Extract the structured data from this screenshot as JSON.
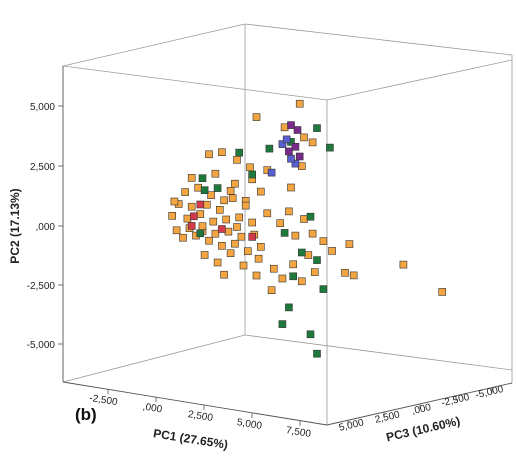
{
  "chart_data": {
    "type": "scatter",
    "title": "",
    "panel_label": "(b)",
    "xlabel": "PC1 (27.65%)",
    "ylabel": "PC2 (17.13%)",
    "zlabel": "PC3 (10.60%)",
    "y_ticks": [
      "5,000",
      "2,500",
      ",000",
      "-2,500",
      "-5,000"
    ],
    "x_ticks": [
      "-2,500",
      ",000",
      "2,500",
      "5,000",
      "7,500"
    ],
    "z_ticks": [
      "5,000",
      "2,500",
      ",000",
      "-2,500",
      "-5,000"
    ],
    "grid": false,
    "colors": {
      "orange": "#f2a541",
      "green": "#1e7a3c",
      "purple": "#7a2a8a",
      "blue": "#5a5fd0",
      "red": "#d43a4a",
      "edge": "#9a9a9a"
    },
    "series": [
      {
        "color": "orange",
        "points": [
          [
            0.6,
            3.0
          ],
          [
            1.2,
            3.1
          ],
          [
            1.9,
            2.8
          ],
          [
            2.8,
            4.6
          ],
          [
            4.1,
            4.2
          ],
          [
            4.8,
            5.2
          ],
          [
            5.0,
            3.8
          ],
          [
            5.4,
            3.6
          ],
          [
            3.3,
            2.4
          ],
          [
            4.9,
            2.6
          ],
          [
            2.6,
            2.0
          ],
          [
            0.9,
            2.2
          ],
          [
            1.6,
            1.5
          ],
          [
            2.3,
            1.1
          ],
          [
            1.8,
            1.8
          ],
          [
            -1.1,
            0.4
          ],
          [
            -0.8,
            0.9
          ],
          [
            -0.4,
            0.3
          ],
          [
            -0.2,
            0.8
          ],
          [
            0.2,
            0.5
          ],
          [
            0.5,
            0.9
          ],
          [
            0.8,
            0.2
          ],
          [
            1.1,
            0.7
          ],
          [
            1.4,
            0.3
          ],
          [
            1.7,
            1.2
          ],
          [
            2.0,
            0.4
          ],
          [
            2.3,
            0.9
          ],
          [
            2.6,
            0.2
          ],
          [
            -0.9,
            -0.2
          ],
          [
            -0.6,
            -0.5
          ],
          [
            -0.3,
            -0.1
          ],
          [
            0.0,
            -0.4
          ],
          [
            0.3,
            -0.2
          ],
          [
            0.6,
            -0.6
          ],
          [
            0.9,
            -0.3
          ],
          [
            1.2,
            -0.8
          ],
          [
            1.5,
            -0.2
          ],
          [
            1.8,
            -0.7
          ],
          [
            2.1,
            -0.4
          ],
          [
            2.4,
            -1.0
          ],
          [
            2.7,
            -0.3
          ],
          [
            3.0,
            -0.8
          ],
          [
            -0.5,
            1.4
          ],
          [
            0.1,
            1.6
          ],
          [
            0.7,
            1.3
          ],
          [
            1.3,
            1.1
          ],
          [
            -1.0,
            1.0
          ],
          [
            0.4,
            -1.2
          ],
          [
            1.0,
            -1.5
          ],
          [
            1.6,
            -1.1
          ],
          [
            2.2,
            -1.6
          ],
          [
            2.9,
            -1.3
          ],
          [
            3.6,
            -1.7
          ],
          [
            3.3,
            0.6
          ],
          [
            3.9,
            0.2
          ],
          [
            4.3,
            0.7
          ],
          [
            4.6,
            -0.3
          ],
          [
            5.0,
            0.4
          ],
          [
            5.4,
            -0.2
          ],
          [
            5.9,
            -0.5
          ],
          [
            5.2,
            -1.1
          ],
          [
            6.3,
            -0.9
          ],
          [
            4.5,
            -1.5
          ],
          [
            4.0,
            -2.1
          ],
          [
            4.9,
            -2.2
          ],
          [
            5.5,
            -1.8
          ],
          [
            6.9,
            -1.8
          ],
          [
            7.1,
            -0.6
          ],
          [
            7.3,
            -1.9
          ],
          [
            9.6,
            -1.4
          ],
          [
            11.4,
            -2.5
          ],
          [
            3.0,
            1.5
          ],
          [
            2.5,
            2.5
          ],
          [
            4.4,
            1.7
          ],
          [
            -0.2,
            2.0
          ],
          [
            0.3,
            0.0
          ],
          [
            1.9,
            0.0
          ],
          [
            2.8,
            -2.0
          ],
          [
            1.3,
            -2.0
          ],
          [
            3.5,
            -2.6
          ]
        ]
      },
      {
        "color": "green",
        "points": [
          [
            0.3,
            2.0
          ],
          [
            2.0,
            3.1
          ],
          [
            4.4,
            3.6
          ],
          [
            5.6,
            4.2
          ],
          [
            6.2,
            3.4
          ],
          [
            3.4,
            3.3
          ],
          [
            2.6,
            2.2
          ],
          [
            0.4,
            1.5
          ],
          [
            4.1,
            -0.2
          ],
          [
            5.3,
            0.5
          ],
          [
            4.9,
            -1.0
          ],
          [
            5.6,
            -1.3
          ],
          [
            4.5,
            -2.0
          ],
          [
            5.9,
            -2.5
          ],
          [
            4.3,
            -3.3
          ],
          [
            4.0,
            -4.0
          ],
          [
            5.3,
            -4.4
          ],
          [
            5.6,
            -5.2
          ],
          [
            0.2,
            -0.3
          ],
          [
            1.0,
            1.6
          ]
        ]
      },
      {
        "color": "purple",
        "points": [
          [
            4.4,
            4.3
          ],
          [
            4.6,
            3.4
          ],
          [
            4.8,
            3.0
          ],
          [
            4.3,
            3.2
          ],
          [
            4.7,
            4.1
          ]
        ]
      },
      {
        "color": "blue",
        "points": [
          [
            4.0,
            3.5
          ],
          [
            4.2,
            3.7
          ],
          [
            4.6,
            2.7
          ],
          [
            3.5,
            2.3
          ],
          [
            4.4,
            2.9
          ]
        ]
      },
      {
        "color": "red",
        "points": [
          [
            -0.1,
            0.4
          ],
          [
            0.2,
            0.9
          ],
          [
            -0.2,
            0.0
          ],
          [
            1.2,
            -0.1
          ],
          [
            2.6,
            -0.4
          ]
        ]
      }
    ]
  }
}
